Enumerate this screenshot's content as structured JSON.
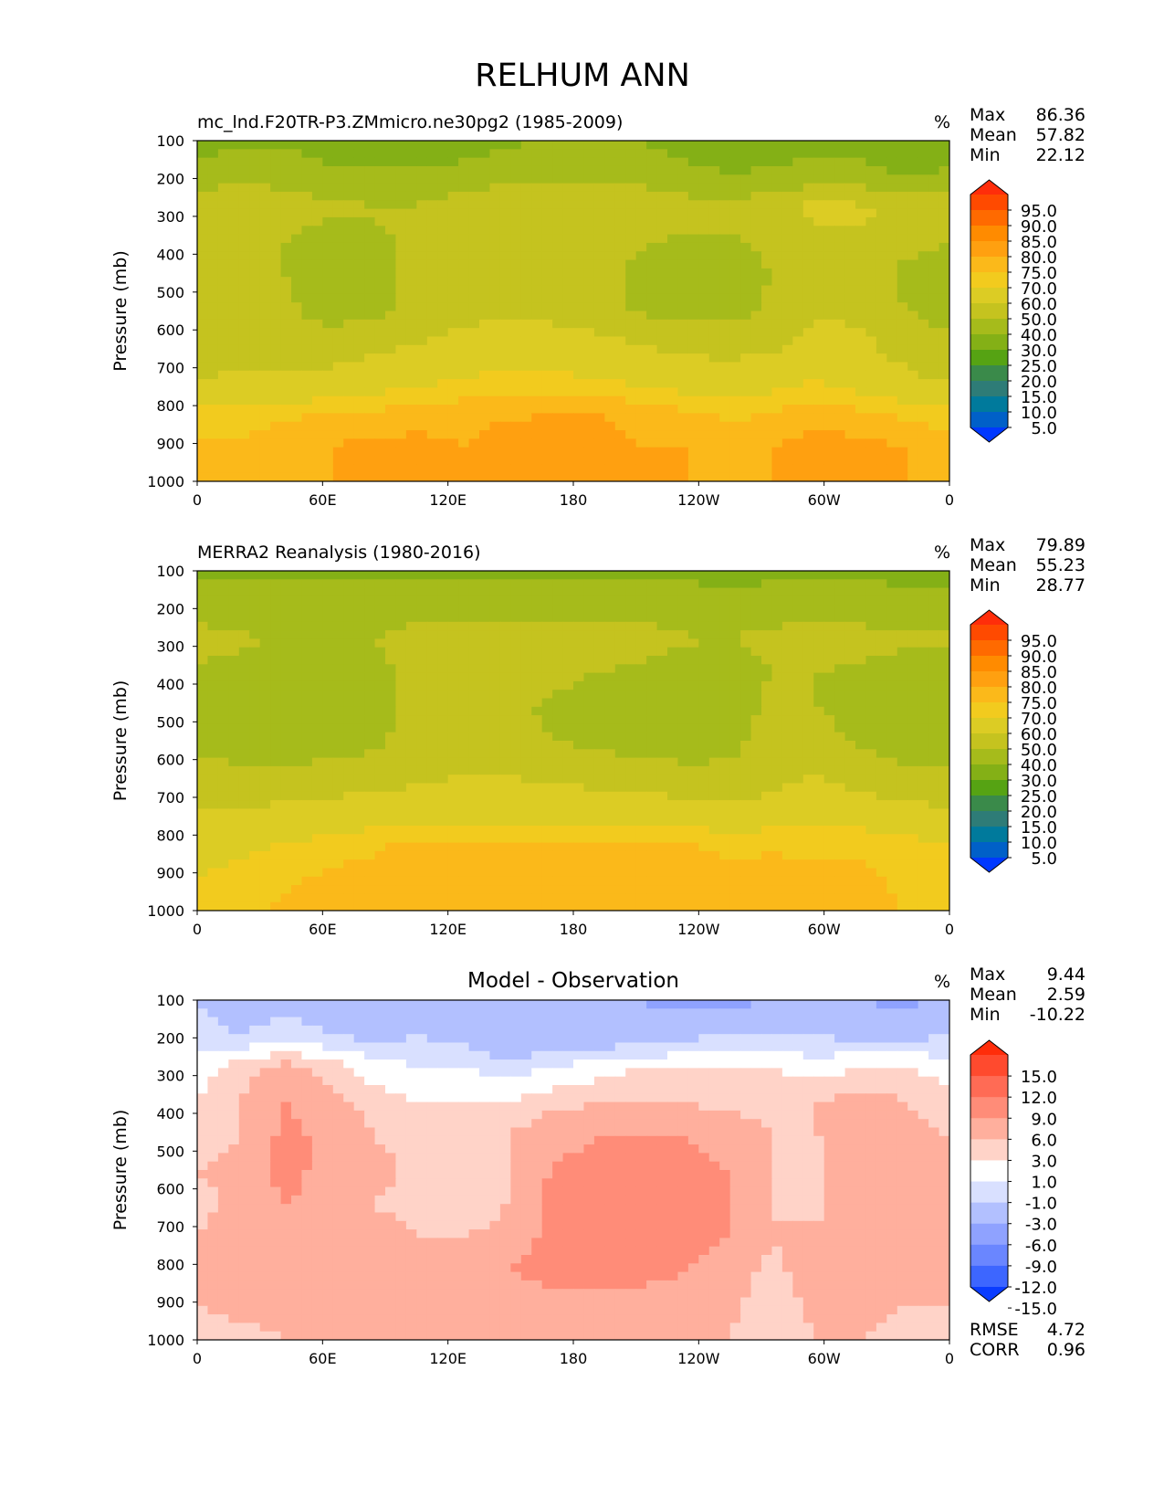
{
  "figure_title": "RELHUM ANN",
  "chart_data": [
    {
      "type": "heatmap",
      "panel": "model",
      "title": "mc_lnd.F20TR-P3.ZMmicro.ne30pg2 (1985-2009)",
      "units": "%",
      "ylabel": "Pressure (mb)",
      "xlabel": "",
      "x_ticks": [
        "0",
        "60E",
        "120E",
        "180",
        "120W",
        "60W",
        "0"
      ],
      "y_ticks": [
        "100",
        "200",
        "300",
        "400",
        "500",
        "600",
        "700",
        "800",
        "900",
        "1000"
      ],
      "ylim": [
        1000,
        100
      ],
      "xlim_deg": [
        0,
        360
      ],
      "stats": [
        {
          "label": "Max",
          "value": "86.36"
        },
        {
          "label": "Mean",
          "value": "57.82"
        },
        {
          "label": "Min",
          "value": "22.12"
        }
      ],
      "colorbar": {
        "labels": [
          "95.0",
          "90.0",
          "85.0",
          "80.0",
          "75.0",
          "70.0",
          "60.0",
          "50.0",
          "40.0",
          "30.0",
          "25.0",
          "20.0",
          "15.0",
          "10.0",
          "5.0"
        ],
        "colors": [
          "#ff2d0a",
          "#ff4a00",
          "#ff6a00",
          "#ff8b00",
          "#ffa010",
          "#fbb91a",
          "#f2cb1e",
          "#dccc24",
          "#c5c31f",
          "#a6bb1b",
          "#84b016",
          "#56a313",
          "#3a8a4a",
          "#2e7c77",
          "#007a9c",
          "#0060c8",
          "#0038ff"
        ]
      },
      "field": {
        "rows": [
          [
            36,
            37,
            38,
            33,
            30,
            30,
            33,
            38,
            41,
            41,
            40,
            36,
            30,
            33,
            37,
            36,
            30,
            30
          ],
          [
            45,
            47,
            47,
            43,
            42,
            42,
            45,
            47,
            47,
            47,
            47,
            44,
            40,
            43,
            44,
            43,
            40,
            42
          ],
          [
            57,
            57,
            54,
            52,
            51,
            51,
            56,
            57,
            58,
            58,
            56,
            54,
            54,
            56,
            64,
            62,
            58,
            56
          ],
          [
            54,
            52,
            50,
            45,
            48,
            53,
            58,
            58,
            58,
            58,
            51,
            48,
            48,
            52,
            56,
            58,
            52,
            50
          ],
          [
            50,
            52,
            50,
            43,
            46,
            53,
            57,
            58,
            57,
            54,
            47,
            45,
            46,
            50,
            56,
            57,
            48,
            45
          ],
          [
            52,
            54,
            52,
            46,
            47,
            54,
            58,
            58,
            58,
            55,
            49,
            46,
            47,
            52,
            58,
            58,
            50,
            46
          ],
          [
            55,
            55,
            55,
            55,
            58,
            60,
            63,
            64,
            64,
            63,
            60,
            58,
            56,
            58,
            65,
            62,
            56,
            52
          ],
          [
            60,
            62,
            62,
            63,
            66,
            68,
            70,
            72,
            72,
            70,
            68,
            66,
            65,
            67,
            70,
            66,
            62,
            58
          ],
          [
            72,
            73,
            74,
            75,
            76,
            77,
            78,
            79,
            80,
            80,
            78,
            76,
            74,
            75,
            78,
            76,
            74,
            72
          ],
          [
            76,
            76,
            78,
            80,
            82,
            82,
            80,
            83,
            84,
            84,
            80,
            80,
            78,
            80,
            82,
            82,
            80,
            78
          ],
          [
            78,
            78,
            80,
            80,
            82,
            82,
            80,
            82,
            82,
            82,
            80,
            80,
            78,
            80,
            80,
            80,
            80,
            78
          ]
        ],
        "row_pressures": [
          100,
          200,
          300,
          400,
          500,
          600,
          700,
          800,
          900,
          950,
          1000
        ],
        "scale": "relhum"
      }
    },
    {
      "type": "heatmap",
      "panel": "observation",
      "title": "MERRA2 Reanalysis (1980-2016)",
      "units": "%",
      "ylabel": "Pressure (mb)",
      "xlabel": "",
      "x_ticks": [
        "0",
        "60E",
        "120E",
        "180",
        "120W",
        "60W",
        "0"
      ],
      "y_ticks": [
        "100",
        "200",
        "300",
        "400",
        "500",
        "600",
        "700",
        "800",
        "900",
        "1000"
      ],
      "ylim": [
        1000,
        100
      ],
      "xlim_deg": [
        0,
        360
      ],
      "stats": [
        {
          "label": "Max",
          "value": "79.89"
        },
        {
          "label": "Mean",
          "value": "55.23"
        },
        {
          "label": "Min",
          "value": "28.77"
        }
      ],
      "colorbar": {
        "labels": [
          "95.0",
          "90.0",
          "85.0",
          "80.0",
          "75.0",
          "70.0",
          "60.0",
          "50.0",
          "40.0",
          "30.0",
          "25.0",
          "20.0",
          "15.0",
          "10.0",
          "5.0"
        ],
        "colors": [
          "#ff2d0a",
          "#ff4a00",
          "#ff6a00",
          "#ff8b00",
          "#ffa010",
          "#fbb91a",
          "#f2cb1e",
          "#dccc24",
          "#c5c31f",
          "#a6bb1b",
          "#84b016",
          "#56a313",
          "#3a8a4a",
          "#2e7c77",
          "#007a9c",
          "#0060c8",
          "#0038ff"
        ]
      },
      "field": {
        "rows": [
          [
            38,
            38,
            38,
            38,
            38,
            38,
            38,
            38,
            38,
            38,
            38,
            38,
            38,
            38,
            38,
            38,
            38,
            38
          ],
          [
            44,
            44,
            45,
            44,
            44,
            45,
            45,
            45,
            45,
            45,
            45,
            44,
            42,
            44,
            44,
            44,
            43,
            43
          ],
          [
            54,
            52,
            48,
            47,
            50,
            54,
            55,
            55,
            55,
            55,
            54,
            51,
            50,
            53,
            56,
            54,
            52,
            52
          ],
          [
            48,
            46,
            46,
            45,
            47,
            53,
            55,
            55,
            53,
            50,
            48,
            46,
            46,
            50,
            50,
            48,
            46,
            46
          ],
          [
            46,
            46,
            45,
            44,
            46,
            53,
            56,
            53,
            48,
            46,
            46,
            45,
            46,
            52,
            50,
            46,
            45,
            45
          ],
          [
            48,
            46,
            46,
            44,
            48,
            54,
            58,
            56,
            50,
            48,
            46,
            46,
            47,
            54,
            54,
            48,
            46,
            46
          ],
          [
            52,
            52,
            52,
            54,
            56,
            58,
            60,
            60,
            58,
            56,
            54,
            52,
            52,
            56,
            60,
            56,
            52,
            52
          ],
          [
            60,
            60,
            62,
            63,
            64,
            65,
            66,
            66,
            66,
            66,
            65,
            64,
            62,
            64,
            66,
            64,
            62,
            60
          ],
          [
            66,
            68,
            70,
            72,
            74,
            76,
            76,
            76,
            76,
            76,
            75,
            75,
            74,
            74,
            74,
            74,
            72,
            70
          ],
          [
            70,
            72,
            74,
            76,
            77,
            77,
            76,
            77,
            77,
            77,
            77,
            77,
            76,
            77,
            76,
            76,
            74,
            72
          ],
          [
            73,
            74,
            76,
            76,
            77,
            77,
            76,
            77,
            77,
            77,
            77,
            77,
            76,
            77,
            76,
            76,
            75,
            74
          ]
        ],
        "row_pressures": [
          100,
          200,
          300,
          400,
          500,
          600,
          700,
          800,
          900,
          950,
          1000
        ],
        "scale": "relhum"
      }
    },
    {
      "type": "heatmap",
      "panel": "difference",
      "title": "Model - Observation",
      "units": "%",
      "ylabel": "Pressure (mb)",
      "xlabel": "",
      "x_ticks": [
        "0",
        "60E",
        "120E",
        "180",
        "120W",
        "60W",
        "0"
      ],
      "y_ticks": [
        "100",
        "200",
        "300",
        "400",
        "500",
        "600",
        "700",
        "800",
        "900",
        "1000"
      ],
      "ylim": [
        1000,
        100
      ],
      "xlim_deg": [
        0,
        360
      ],
      "stats": [
        {
          "label": "Max",
          "value": "9.44"
        },
        {
          "label": "Mean",
          "value": "2.59"
        },
        {
          "label": "Min",
          "value": "-10.22"
        }
      ],
      "metrics": [
        {
          "label": "RMSE",
          "value": "4.72"
        },
        {
          "label": "CORR",
          "value": "0.96"
        }
      ],
      "colorbar": {
        "labels": [
          "15.0",
          "12.0",
          "9.0",
          "6.0",
          "3.0",
          "1.0",
          "-1.0",
          "-3.0",
          "-6.0",
          "-9.0",
          "-12.0",
          "-15.0"
        ],
        "colors": [
          "#ff2d0a",
          "#ff4a2e",
          "#ff6b55",
          "#ff8c78",
          "#ffaf9d",
          "#ffd3c8",
          "#ffffff",
          "#d9e0ff",
          "#b2c0ff",
          "#8fa2ff",
          "#6a86ff",
          "#3d66ff",
          "#0a3cff"
        ]
      },
      "field": {
        "rows": [
          [
            -3,
            -5,
            -4,
            -4,
            -3,
            -3,
            -4,
            -5,
            -4,
            -6,
            -6,
            -7,
            -7,
            -6,
            -4,
            -6,
            -7,
            -5
          ],
          [
            -2,
            -3,
            -2,
            -3,
            -4,
            -3,
            -4,
            -6,
            -5,
            -5,
            -5,
            -4,
            -3,
            -3,
            -3,
            -4,
            -4,
            -3
          ],
          [
            0,
            2,
            4,
            2,
            0,
            -1,
            -1,
            -2,
            -1,
            0,
            1,
            1,
            1,
            1,
            0,
            1,
            1,
            0
          ],
          [
            1,
            3,
            6,
            4,
            2,
            1,
            1,
            1,
            2,
            3,
            3,
            3,
            2,
            2,
            3,
            4,
            3,
            2
          ],
          [
            2,
            3,
            7,
            5,
            3,
            2,
            2,
            3,
            5,
            6,
            6,
            6,
            5,
            3,
            3,
            5,
            4,
            3
          ],
          [
            3,
            4,
            7,
            5,
            4,
            2,
            1,
            3,
            6,
            7,
            7,
            7,
            6,
            3,
            2,
            6,
            5,
            4
          ],
          [
            2,
            4,
            6,
            5,
            3,
            2,
            1,
            3,
            7,
            8,
            8,
            7,
            6,
            3,
            2,
            6,
            6,
            4
          ],
          [
            3,
            5,
            6,
            5,
            4,
            3,
            3,
            4,
            7,
            8,
            8,
            7,
            6,
            3,
            4,
            6,
            5,
            4
          ],
          [
            4,
            6,
            6,
            5,
            5,
            4,
            4,
            6,
            7,
            7,
            7,
            6,
            5,
            2,
            5,
            5,
            4,
            4
          ],
          [
            3,
            4,
            4,
            4,
            4,
            3,
            3,
            4,
            5,
            5,
            5,
            4,
            4,
            1,
            4,
            4,
            3,
            3
          ],
          [
            2,
            2,
            3,
            3,
            3,
            3,
            3,
            3,
            3,
            3,
            3,
            3,
            3,
            1,
            3,
            3,
            2,
            2
          ]
        ],
        "row_pressures": [
          100,
          200,
          300,
          400,
          500,
          600,
          700,
          800,
          900,
          950,
          1000
        ],
        "scale": "diff"
      }
    }
  ]
}
